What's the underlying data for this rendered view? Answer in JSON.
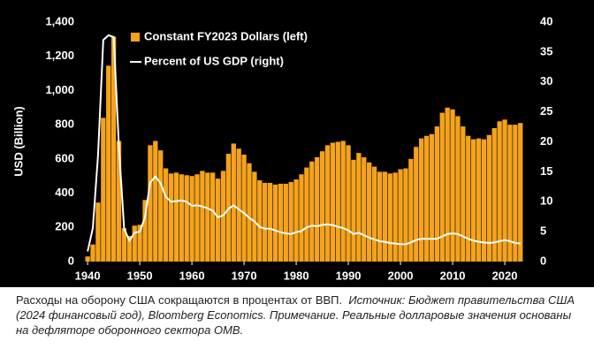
{
  "chart_data": {
    "type": "bar",
    "y_label": "USD (Billion)",
    "x": [
      1940,
      1941,
      1942,
      1943,
      1944,
      1945,
      1946,
      1947,
      1948,
      1949,
      1950,
      1951,
      1952,
      1953,
      1954,
      1955,
      1956,
      1957,
      1958,
      1959,
      1960,
      1961,
      1962,
      1963,
      1964,
      1965,
      1966,
      1967,
      1968,
      1969,
      1970,
      1971,
      1972,
      1973,
      1974,
      1975,
      1976,
      1977,
      1978,
      1979,
      1980,
      1981,
      1982,
      1983,
      1984,
      1985,
      1986,
      1987,
      1988,
      1989,
      1990,
      1991,
      1992,
      1993,
      1994,
      1995,
      1996,
      1997,
      1998,
      1999,
      2000,
      2001,
      2002,
      2003,
      2004,
      2005,
      2006,
      2007,
      2008,
      2009,
      2010,
      2011,
      2012,
      2013,
      2014,
      2015,
      2016,
      2017,
      2018,
      2019,
      2020,
      2021,
      2022,
      2023
    ],
    "series": [
      {
        "name": "Constant FY2023 Dollars (left)",
        "type": "bar",
        "color": "#f5a31c",
        "values": [
          30,
          100,
          345,
          840,
          1145,
          1315,
          705,
          195,
          150,
          210,
          215,
          360,
          680,
          705,
          650,
          545,
          515,
          520,
          510,
          505,
          500,
          510,
          530,
          520,
          520,
          485,
          530,
          630,
          690,
          660,
          625,
          575,
          525,
          475,
          460,
          460,
          450,
          455,
          455,
          465,
          480,
          510,
          550,
          585,
          610,
          645,
          680,
          695,
          700,
          705,
          680,
          595,
          635,
          610,
          580,
          555,
          525,
          525,
          515,
          520,
          540,
          545,
          600,
          670,
          720,
          735,
          745,
          790,
          870,
          900,
          890,
          850,
          790,
          735,
          715,
          720,
          715,
          740,
          780,
          820,
          830,
          800,
          800,
          810
        ]
      },
      {
        "name": "Percent of US GDP (right)",
        "type": "line",
        "axis": "y2",
        "color": "#ffffff",
        "values": [
          1.7,
          5.6,
          17.8,
          37,
          37.8,
          37.5,
          19.2,
          5.5,
          3.5,
          4.8,
          5.0,
          7.4,
          13.2,
          14.2,
          13.1,
          10.8,
          10.0,
          10.1,
          10.2,
          10.0,
          9.3,
          9.4,
          9.2,
          8.9,
          8.5,
          7.4,
          7.7,
          8.8,
          9.4,
          8.7,
          8.1,
          7.3,
          6.7,
          5.8,
          5.5,
          5.5,
          5.2,
          4.9,
          4.7,
          4.6,
          4.9,
          5.1,
          5.7,
          6.0,
          5.9,
          6.1,
          6.2,
          6.1,
          5.8,
          5.6,
          5.2,
          4.6,
          4.8,
          4.4,
          4.0,
          3.7,
          3.4,
          3.3,
          3.1,
          3.0,
          2.9,
          2.9,
          3.2,
          3.6,
          3.8,
          3.8,
          3.8,
          3.8,
          4.2,
          4.6,
          4.7,
          4.6,
          4.2,
          3.8,
          3.5,
          3.3,
          3.2,
          3.1,
          3.2,
          3.4,
          3.6,
          3.4,
          3.1,
          3.0
        ]
      }
    ],
    "xlim": [
      1939.3,
      2024.4
    ],
    "xticks": [
      1940,
      1950,
      1960,
      1970,
      1980,
      1990,
      2000,
      2010,
      2020
    ],
    "ylim": [
      0,
      1400
    ],
    "yticks": [
      0,
      200,
      400,
      600,
      800,
      {
        "value": 1000,
        "label": "1,000"
      },
      {
        "value": 1200,
        "label": "1,200"
      },
      {
        "value": 1400,
        "label": "1,400"
      }
    ],
    "y2lim": [
      0,
      40
    ],
    "y2ticks": [
      0,
      5,
      10,
      15,
      20,
      25,
      30,
      35,
      40
    ],
    "grid": false,
    "caption": {
      "text": "Расходы на оборону США сокращаются в процентах от ВВП.",
      "note": "Источник: Бюджет правительства США (2024 финансовый год), Bloomberg Economics. Примечание. Реальные долларовые значения основаны на дефляторе оборонного сектора OMB."
    }
  }
}
